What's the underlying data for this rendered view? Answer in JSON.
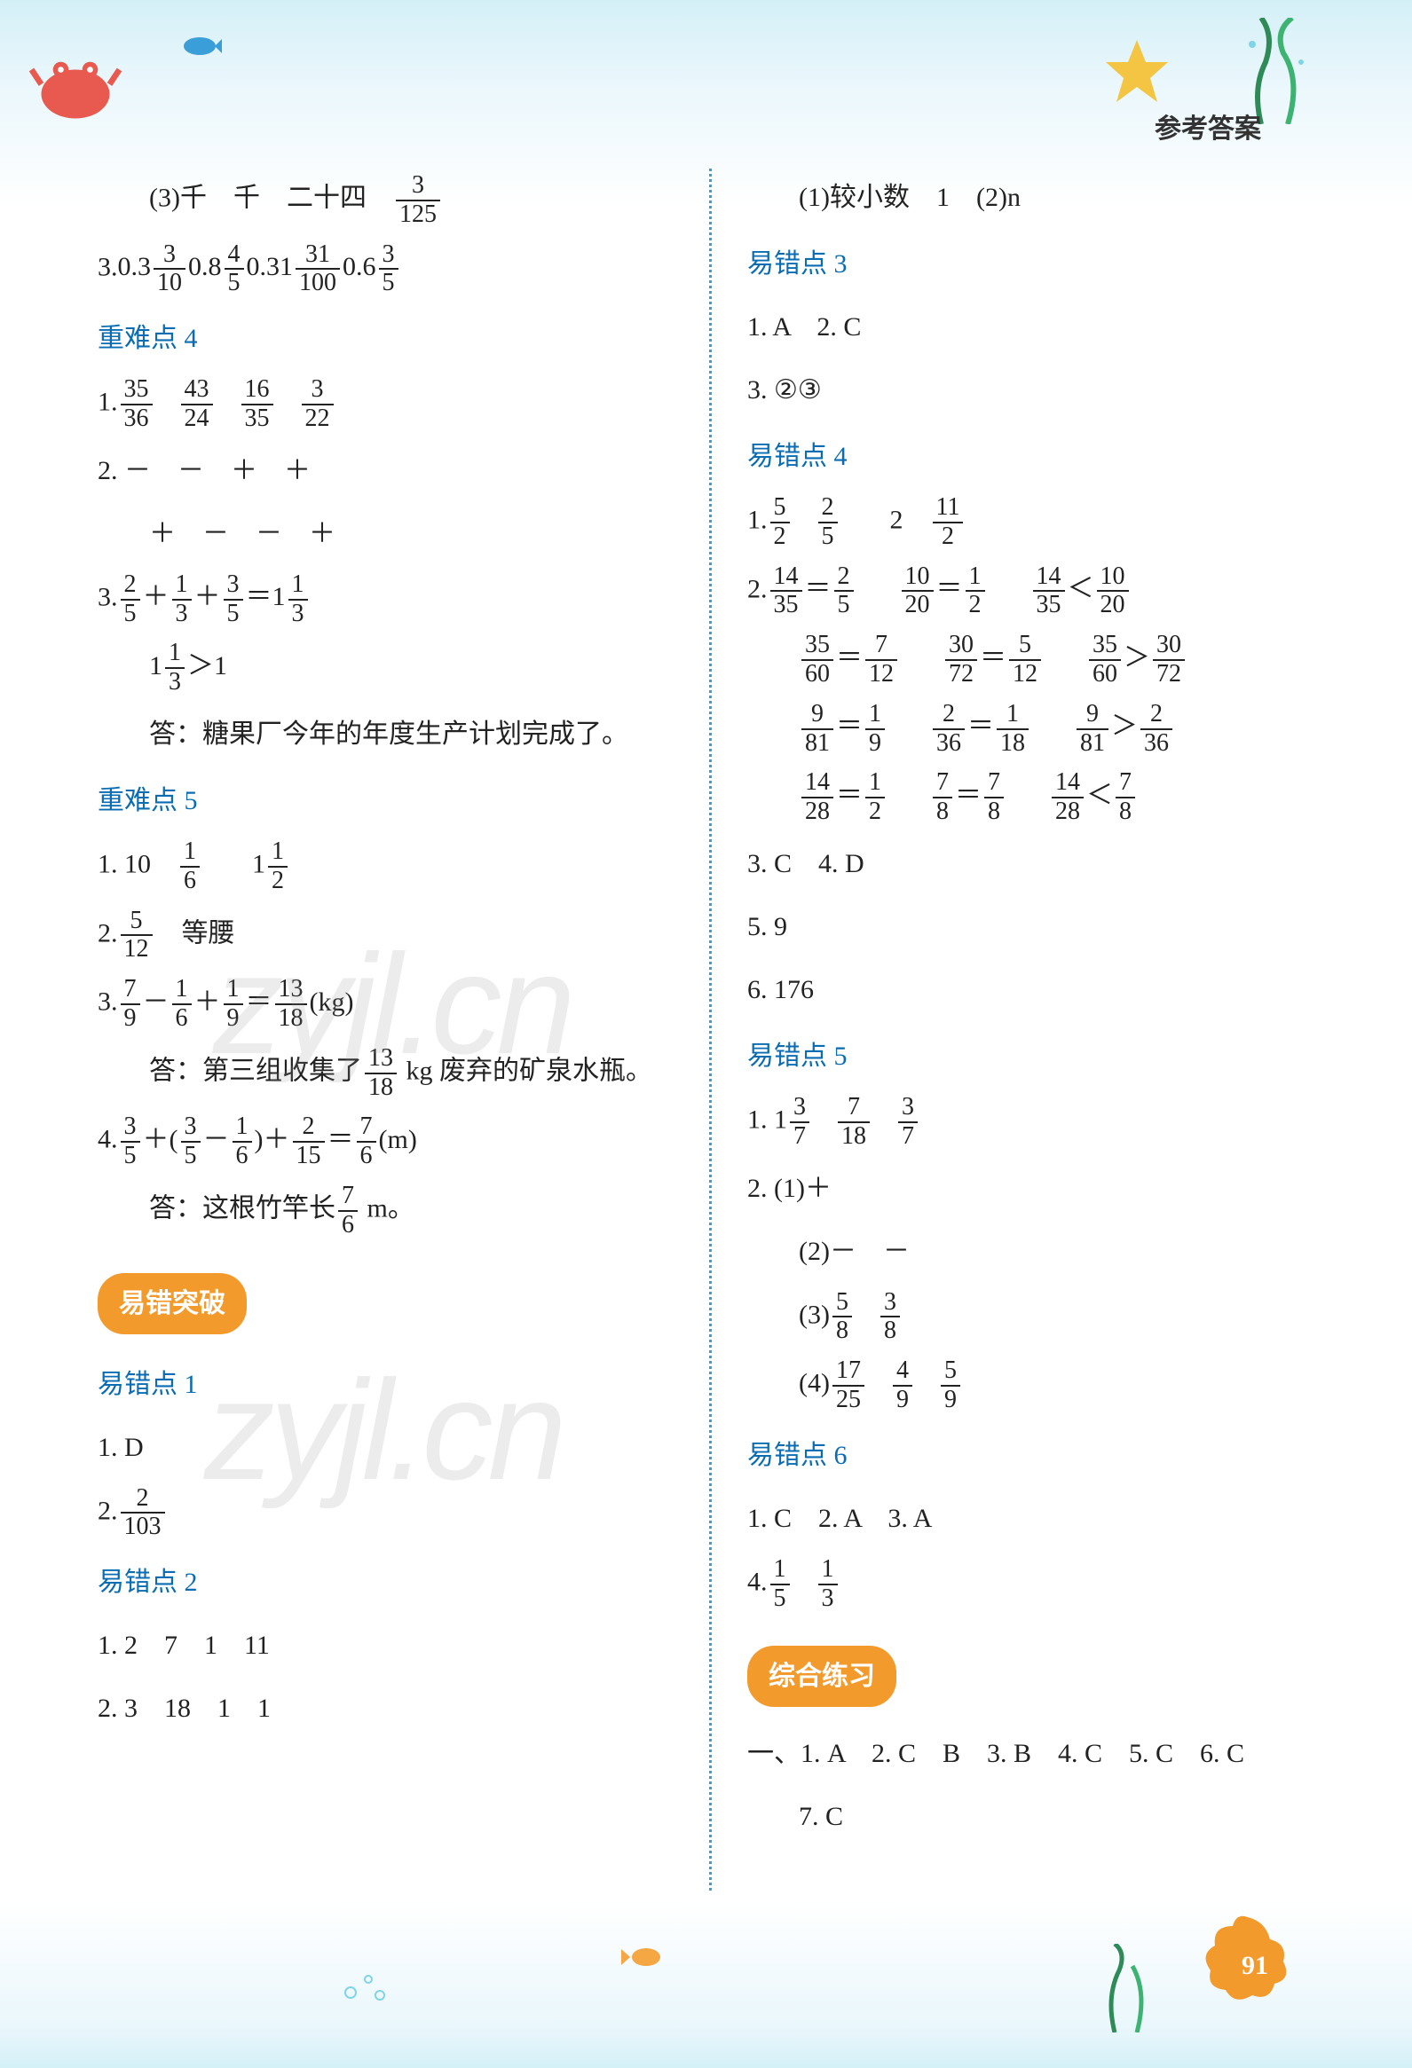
{
  "header": {
    "label": "参考答案"
  },
  "colors": {
    "section_blue": "#0a6db3",
    "pill_bg": "#f39a2d",
    "pill_fg": "#ffffff",
    "divider": "#3a9fd8",
    "text": "#222222",
    "bg_top": "#d4f0f7",
    "bg_mid": "#ffffff",
    "badge": "#f39a2d",
    "crab": "#e85a4f",
    "star": "#f4c542",
    "seaweed": "#2e8b57",
    "fish": "#3a9fd8",
    "watermark": "rgba(150,150,150,0.18)"
  },
  "watermark": "zyjl.cn",
  "page_number": "91",
  "left": {
    "l1_pre": "(3)千　千　二十四　",
    "l1_frac": {
      "n": "3",
      "d": "125"
    },
    "l2_head": "3.",
    "l2_items": [
      {
        "t": "0.3"
      },
      {
        "frac": {
          "n": "3",
          "d": "10"
        }
      },
      {
        "t": "0.8"
      },
      {
        "frac": {
          "n": "4",
          "d": "5"
        }
      },
      {
        "t": "0.31"
      },
      {
        "frac": {
          "n": "31",
          "d": "100"
        }
      },
      {
        "t": "0.6"
      },
      {
        "frac": {
          "n": "3",
          "d": "5"
        }
      }
    ],
    "sec4": "重难点 4",
    "l3_head": "1.",
    "l3_fracs": [
      {
        "n": "35",
        "d": "36"
      },
      {
        "n": "43",
        "d": "24"
      },
      {
        "n": "16",
        "d": "35"
      },
      {
        "n": "3",
        "d": "22"
      }
    ],
    "l4a": "2. －　－　＋　＋",
    "l4b": "＋　－　－　＋",
    "l5_head": "3.",
    "l5_parts": [
      {
        "frac": {
          "n": "2",
          "d": "5"
        }
      },
      {
        "t": "＋"
      },
      {
        "frac": {
          "n": "1",
          "d": "3"
        }
      },
      {
        "t": "＋"
      },
      {
        "frac": {
          "n": "3",
          "d": "5"
        }
      },
      {
        "t": "＝1"
      },
      {
        "frac": {
          "n": "1",
          "d": "3"
        }
      }
    ],
    "l6_parts": [
      {
        "t": "1"
      },
      {
        "frac": {
          "n": "1",
          "d": "3"
        }
      },
      {
        "t": "＞1"
      }
    ],
    "l7": "答：糖果厂今年的年度生产计划完成了。",
    "sec5": "重难点 5",
    "l8_head": "1. 10　",
    "l8_fracs": [
      {
        "n": "1",
        "d": "6"
      }
    ],
    "l8_tail": "　1",
    "l8_fr2": {
      "n": "1",
      "d": "2"
    },
    "l9_head": "2.",
    "l9_frac": {
      "n": "5",
      "d": "12"
    },
    "l9_tail": "　等腰",
    "l10_head": "3.",
    "l10_parts": [
      {
        "frac": {
          "n": "7",
          "d": "9"
        }
      },
      {
        "t": "－"
      },
      {
        "frac": {
          "n": "1",
          "d": "6"
        }
      },
      {
        "t": "＋"
      },
      {
        "frac": {
          "n": "1",
          "d": "9"
        }
      },
      {
        "t": "＝"
      },
      {
        "frac": {
          "n": "13",
          "d": "18"
        }
      },
      {
        "t": "(kg)"
      }
    ],
    "l11_pre": "答：第三组收集了",
    "l11_frac": {
      "n": "13",
      "d": "18"
    },
    "l11_post": " kg 废弃的矿泉水瓶。",
    "l12_head": "4.",
    "l12_parts": [
      {
        "frac": {
          "n": "3",
          "d": "5"
        }
      },
      {
        "t": "＋("
      },
      {
        "frac": {
          "n": "3",
          "d": "5"
        }
      },
      {
        "t": "－"
      },
      {
        "frac": {
          "n": "1",
          "d": "6"
        }
      },
      {
        "t": ")＋"
      },
      {
        "frac": {
          "n": "2",
          "d": "15"
        }
      },
      {
        "t": "＝"
      },
      {
        "frac": {
          "n": "7",
          "d": "6"
        }
      },
      {
        "t": "(m)"
      }
    ],
    "l13_pre": "答：这根竹竿长",
    "l13_frac": {
      "n": "7",
      "d": "6"
    },
    "l13_post": " m。",
    "pill1": "易错突破",
    "err1": "易错点 1",
    "e1_1": "1. D",
    "e1_2h": "2.",
    "e1_2f": {
      "n": "2",
      "d": "103"
    },
    "err2": "易错点 2",
    "e2_1": "1. 2　7　1　11",
    "e2_2": "2. 3　18　1　1"
  },
  "right": {
    "r1": "(1)较小数　1　(2)n",
    "err3": "易错点 3",
    "r2": "1. A　2. C",
    "r3": "3. ②③",
    "err4": "易错点 4",
    "r4_head": "1.",
    "r4_fracs": [
      {
        "n": "5",
        "d": "2"
      },
      {
        "n": "2",
        "d": "5"
      }
    ],
    "r4_mid": "　2　",
    "r4_fr2": {
      "n": "11",
      "d": "2"
    },
    "r5_head": "2.",
    "r5a": [
      {
        "frac": {
          "n": "14",
          "d": "35"
        }
      },
      {
        "t": "＝"
      },
      {
        "frac": {
          "n": "2",
          "d": "5"
        }
      },
      {
        "gap": 1
      },
      {
        "frac": {
          "n": "10",
          "d": "20"
        }
      },
      {
        "t": "＝"
      },
      {
        "frac": {
          "n": "1",
          "d": "2"
        }
      },
      {
        "gap": 1
      },
      {
        "frac": {
          "n": "14",
          "d": "35"
        }
      },
      {
        "t": "＜"
      },
      {
        "frac": {
          "n": "10",
          "d": "20"
        }
      }
    ],
    "r5b": [
      {
        "frac": {
          "n": "35",
          "d": "60"
        }
      },
      {
        "t": "＝"
      },
      {
        "frac": {
          "n": "7",
          "d": "12"
        }
      },
      {
        "gap": 1
      },
      {
        "frac": {
          "n": "30",
          "d": "72"
        }
      },
      {
        "t": "＝"
      },
      {
        "frac": {
          "n": "5",
          "d": "12"
        }
      },
      {
        "gap": 1
      },
      {
        "frac": {
          "n": "35",
          "d": "60"
        }
      },
      {
        "t": "＞"
      },
      {
        "frac": {
          "n": "30",
          "d": "72"
        }
      }
    ],
    "r5c": [
      {
        "frac": {
          "n": "9",
          "d": "81"
        }
      },
      {
        "t": "＝"
      },
      {
        "frac": {
          "n": "1",
          "d": "9"
        }
      },
      {
        "gap": 1
      },
      {
        "frac": {
          "n": "2",
          "d": "36"
        }
      },
      {
        "t": "＝"
      },
      {
        "frac": {
          "n": "1",
          "d": "18"
        }
      },
      {
        "gap": 1
      },
      {
        "frac": {
          "n": "9",
          "d": "81"
        }
      },
      {
        "t": "＞"
      },
      {
        "frac": {
          "n": "2",
          "d": "36"
        }
      }
    ],
    "r5d": [
      {
        "frac": {
          "n": "14",
          "d": "28"
        }
      },
      {
        "t": "＝"
      },
      {
        "frac": {
          "n": "1",
          "d": "2"
        }
      },
      {
        "gap": 1
      },
      {
        "frac": {
          "n": "7",
          "d": "8"
        }
      },
      {
        "t": "＝"
      },
      {
        "frac": {
          "n": "7",
          "d": "8"
        }
      },
      {
        "gap": 1
      },
      {
        "frac": {
          "n": "14",
          "d": "28"
        }
      },
      {
        "t": "＜"
      },
      {
        "frac": {
          "n": "7",
          "d": "8"
        }
      }
    ],
    "r6": "3. C　4. D",
    "r7": "5. 9",
    "r8": "6. 176",
    "err5": "易错点 5",
    "r9_head": "1. 1",
    "r9_fracs": [
      {
        "n": "3",
        "d": "7"
      },
      {
        "n": "7",
        "d": "18"
      },
      {
        "n": "3",
        "d": "7"
      }
    ],
    "r10": "2. (1)＋",
    "r11": "(2)－　－",
    "r12_pre": "(3)",
    "r12_fracs": [
      {
        "n": "5",
        "d": "8"
      },
      {
        "n": "3",
        "d": "8"
      }
    ],
    "r13_pre": "(4)",
    "r13_fracs": [
      {
        "n": "17",
        "d": "25"
      },
      {
        "n": "4",
        "d": "9"
      },
      {
        "n": "5",
        "d": "9"
      }
    ],
    "err6": "易错点 6",
    "r14": "1. C　2. A　3. A",
    "r15_head": "4.",
    "r15_fracs": [
      {
        "n": "1",
        "d": "5"
      },
      {
        "n": "1",
        "d": "3"
      }
    ],
    "pill2": "综合练习",
    "r16": "一、1. A　2. C　B　3. B　4. C　5. C　6. C",
    "r17": "7. C"
  }
}
